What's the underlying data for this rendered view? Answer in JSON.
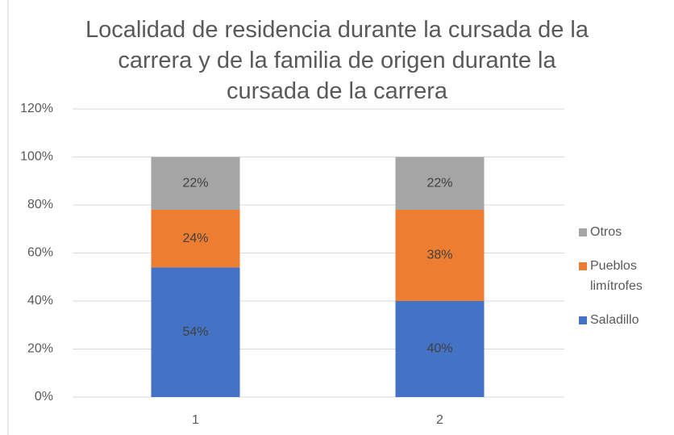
{
  "chart_data": {
    "type": "stacked_bar",
    "title": "Localidad de residencia durante la cursada de la carrera y de la familia de origen durante la cursada de la carrera",
    "categories": [
      "1",
      "2"
    ],
    "series": [
      {
        "name": "Saladillo",
        "color": "#4472c4",
        "values": [
          54,
          40
        ],
        "value_labels": [
          "54%",
          "40%"
        ]
      },
      {
        "name": "Pueblos limítrofes",
        "color": "#ed7d31",
        "values": [
          24,
          38
        ],
        "value_labels": [
          "24%",
          "38%"
        ]
      },
      {
        "name": "Otros",
        "color": "#a5a5a5",
        "values": [
          22,
          22
        ],
        "value_labels": [
          "22%",
          "22%"
        ]
      }
    ],
    "ylim": [
      0,
      120
    ],
    "yticks": [
      {
        "value": 0,
        "label": "0%"
      },
      {
        "value": 20,
        "label": "20%"
      },
      {
        "value": 40,
        "label": "40%"
      },
      {
        "value": 60,
        "label": "60%"
      },
      {
        "value": 80,
        "label": "80%"
      },
      {
        "value": 100,
        "label": "100%"
      },
      {
        "value": 120,
        "label": "120%"
      }
    ],
    "grid": true,
    "legend": "right"
  }
}
